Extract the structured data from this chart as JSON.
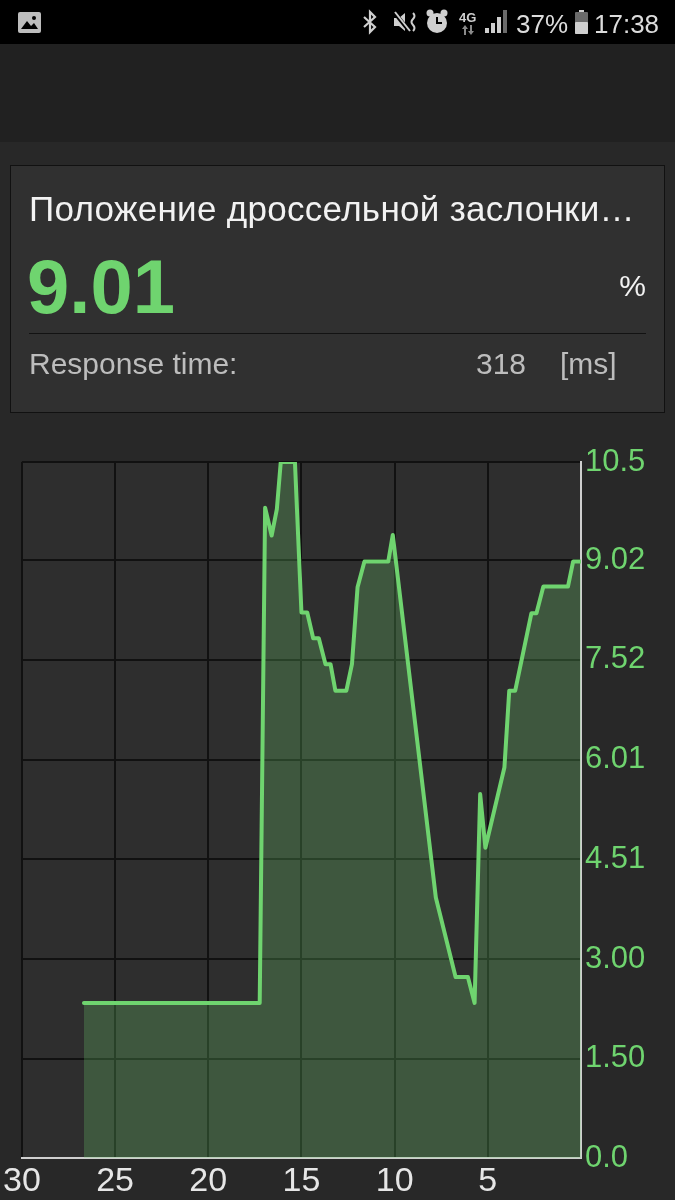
{
  "chart_data": {
    "type": "area",
    "title": "Положение дроссельной заслонки…",
    "annotations": [
      "9.01",
      "%",
      "Response time:",
      "318",
      "[ms]",
      "4G",
      "37%",
      "17:38"
    ],
    "x": [
      26.67,
      17.24,
      16.95,
      16.6,
      16.32,
      16.11,
      15.35,
      15.0,
      14.69,
      14.37,
      14.07,
      13.71,
      13.44,
      13.18,
      12.59,
      12.29,
      11.99,
      11.62,
      10.34,
      10.1,
      7.79,
      6.73,
      6.07,
      5.71,
      5.41,
      5.13,
      4.11,
      3.85,
      3.53,
      2.66,
      2.39,
      2.02,
      0.7,
      0.42,
      0
    ],
    "values": [
      2.34,
      2.34,
      9.81,
      9.39,
      9.79,
      10.5,
      10.5,
      8.23,
      8.23,
      7.84,
      7.84,
      7.45,
      7.45,
      7.05,
      7.05,
      7.45,
      8.61,
      9.0,
      9.0,
      9.4,
      3.93,
      2.73,
      2.73,
      2.34,
      5.49,
      4.68,
      5.89,
      7.05,
      7.05,
      8.22,
      8.22,
      8.62,
      8.62,
      9.0,
      9.0
    ],
    "color": "#6fd46f",
    "xlim": [
      30,
      0
    ],
    "xticks": [
      30,
      25,
      20,
      15,
      10,
      5
    ],
    "ylim": [
      0,
      10.5
    ],
    "yticks": [
      {
        "value": 0,
        "label": "0.0"
      },
      {
        "value": 1.5,
        "label": "1.50"
      },
      {
        "value": 3,
        "label": "3.00"
      },
      4.51,
      6.01,
      7.52,
      9.02,
      10.5
    ],
    "grid": true,
    "marker": "none",
    "line_style": "solid"
  }
}
